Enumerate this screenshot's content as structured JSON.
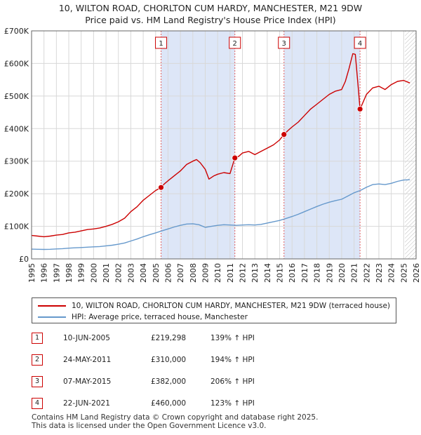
{
  "title_line1": "10, WILTON ROAD, CHORLTON CUM HARDY, MANCHESTER, M21 9DW",
  "title_line2": "Price paid vs. HM Land Registry's House Price Index (HPI)",
  "chart_data": {
    "type": "line",
    "title": "10, WILTON ROAD, CHORLTON CUM HARDY, MANCHESTER, M21 9DW — Price paid vs. HM Land Registry's House Price Index (HPI)",
    "xlabel": "",
    "ylabel": "",
    "xlim": [
      1995,
      2026
    ],
    "ylim": [
      0,
      700000
    ],
    "x_ticks": [
      1995,
      1996,
      1997,
      1998,
      1999,
      2000,
      2001,
      2002,
      2003,
      2004,
      2005,
      2006,
      2007,
      2008,
      2009,
      2010,
      2011,
      2012,
      2013,
      2014,
      2015,
      2016,
      2017,
      2018,
      2019,
      2020,
      2021,
      2022,
      2023,
      2024,
      2025,
      2026
    ],
    "y_ticks": [
      0,
      100000,
      200000,
      300000,
      400000,
      500000,
      600000,
      700000
    ],
    "y_tick_labels": [
      "£0",
      "£100K",
      "£200K",
      "£300K",
      "£400K",
      "£500K",
      "£600K",
      "£700K"
    ],
    "grid": true,
    "colors": {
      "property": "#cc0000",
      "hpi": "#6699cc",
      "shade": "#dde6f7",
      "event_line": "#e06060"
    },
    "series": [
      {
        "name": "10, WILTON ROAD, CHORLTON CUM HARDY, MANCHESTER, M21 9DW (terraced house)",
        "points": [
          [
            1995.0,
            72000
          ],
          [
            1995.5,
            70000
          ],
          [
            1996.0,
            68000
          ],
          [
            1996.5,
            70000
          ],
          [
            1997.0,
            73000
          ],
          [
            1997.5,
            75000
          ],
          [
            1998.0,
            80000
          ],
          [
            1998.5,
            82000
          ],
          [
            1999.0,
            86000
          ],
          [
            1999.5,
            90000
          ],
          [
            2000.0,
            92000
          ],
          [
            2000.5,
            95000
          ],
          [
            2001.0,
            100000
          ],
          [
            2001.5,
            106000
          ],
          [
            2002.0,
            114000
          ],
          [
            2002.5,
            125000
          ],
          [
            2003.0,
            145000
          ],
          [
            2003.5,
            160000
          ],
          [
            2004.0,
            180000
          ],
          [
            2004.5,
            195000
          ],
          [
            2005.0,
            210000
          ],
          [
            2005.44,
            219298
          ],
          [
            2005.7,
            230000
          ],
          [
            2006.0,
            240000
          ],
          [
            2006.5,
            255000
          ],
          [
            2007.0,
            270000
          ],
          [
            2007.5,
            290000
          ],
          [
            2008.0,
            300000
          ],
          [
            2008.3,
            305000
          ],
          [
            2008.6,
            295000
          ],
          [
            2009.0,
            275000
          ],
          [
            2009.3,
            245000
          ],
          [
            2009.7,
            255000
          ],
          [
            2010.0,
            260000
          ],
          [
            2010.5,
            265000
          ],
          [
            2011.0,
            262000
          ],
          [
            2011.39,
            310000
          ],
          [
            2011.7,
            315000
          ],
          [
            2012.0,
            325000
          ],
          [
            2012.5,
            330000
          ],
          [
            2013.0,
            320000
          ],
          [
            2013.5,
            330000
          ],
          [
            2014.0,
            340000
          ],
          [
            2014.5,
            350000
          ],
          [
            2015.0,
            365000
          ],
          [
            2015.35,
            382000
          ],
          [
            2015.7,
            395000
          ],
          [
            2016.0,
            405000
          ],
          [
            2016.5,
            420000
          ],
          [
            2017.0,
            440000
          ],
          [
            2017.5,
            460000
          ],
          [
            2018.0,
            475000
          ],
          [
            2018.5,
            490000
          ],
          [
            2019.0,
            505000
          ],
          [
            2019.5,
            515000
          ],
          [
            2020.0,
            520000
          ],
          [
            2020.3,
            545000
          ],
          [
            2020.6,
            585000
          ],
          [
            2020.9,
            630000
          ],
          [
            2021.1,
            628000
          ],
          [
            2021.35,
            520000
          ],
          [
            2021.48,
            460000
          ],
          [
            2021.6,
            470000
          ],
          [
            2022.0,
            505000
          ],
          [
            2022.5,
            525000
          ],
          [
            2023.0,
            530000
          ],
          [
            2023.5,
            520000
          ],
          [
            2024.0,
            535000
          ],
          [
            2024.5,
            545000
          ],
          [
            2025.0,
            548000
          ],
          [
            2025.5,
            540000
          ]
        ]
      },
      {
        "name": "HPI: Average price, terraced house, Manchester",
        "points": [
          [
            1995.0,
            30000
          ],
          [
            1995.5,
            29500
          ],
          [
            1996.0,
            29000
          ],
          [
            1996.5,
            29500
          ],
          [
            1997.0,
            30500
          ],
          [
            1997.5,
            31500
          ],
          [
            1998.0,
            33000
          ],
          [
            1998.5,
            34000
          ],
          [
            1999.0,
            35000
          ],
          [
            1999.5,
            36000
          ],
          [
            2000.0,
            37000
          ],
          [
            2000.5,
            38000
          ],
          [
            2001.0,
            40000
          ],
          [
            2001.5,
            42000
          ],
          [
            2002.0,
            45000
          ],
          [
            2002.5,
            49000
          ],
          [
            2003.0,
            55000
          ],
          [
            2003.5,
            61000
          ],
          [
            2004.0,
            68000
          ],
          [
            2004.5,
            74000
          ],
          [
            2005.0,
            80000
          ],
          [
            2005.5,
            86000
          ],
          [
            2006.0,
            92000
          ],
          [
            2006.5,
            98000
          ],
          [
            2007.0,
            103000
          ],
          [
            2007.5,
            107000
          ],
          [
            2008.0,
            108000
          ],
          [
            2008.5,
            105000
          ],
          [
            2009.0,
            97000
          ],
          [
            2009.5,
            100000
          ],
          [
            2010.0,
            103000
          ],
          [
            2010.5,
            105000
          ],
          [
            2011.0,
            104000
          ],
          [
            2011.5,
            103000
          ],
          [
            2012.0,
            104000
          ],
          [
            2012.5,
            105000
          ],
          [
            2013.0,
            104000
          ],
          [
            2013.5,
            106000
          ],
          [
            2014.0,
            110000
          ],
          [
            2014.5,
            114000
          ],
          [
            2015.0,
            118000
          ],
          [
            2015.5,
            124000
          ],
          [
            2016.0,
            130000
          ],
          [
            2016.5,
            137000
          ],
          [
            2017.0,
            145000
          ],
          [
            2017.5,
            153000
          ],
          [
            2018.0,
            161000
          ],
          [
            2018.5,
            168000
          ],
          [
            2019.0,
            174000
          ],
          [
            2019.5,
            179000
          ],
          [
            2020.0,
            183000
          ],
          [
            2020.5,
            193000
          ],
          [
            2021.0,
            203000
          ],
          [
            2021.5,
            210000
          ],
          [
            2022.0,
            220000
          ],
          [
            2022.5,
            228000
          ],
          [
            2023.0,
            230000
          ],
          [
            2023.5,
            228000
          ],
          [
            2024.0,
            232000
          ],
          [
            2024.5,
            238000
          ],
          [
            2025.0,
            242000
          ],
          [
            2025.5,
            243000
          ]
        ]
      }
    ],
    "transactions": [
      {
        "label": "1",
        "year": 2005.44,
        "price": 219298
      },
      {
        "label": "2",
        "year": 2011.39,
        "price": 310000
      },
      {
        "label": "3",
        "year": 2015.35,
        "price": 382000
      },
      {
        "label": "4",
        "year": 2021.48,
        "price": 460000
      }
    ],
    "shaded_ranges": [
      [
        2005.44,
        2011.39
      ],
      [
        2015.35,
        2021.48
      ]
    ],
    "forecast_start": 2025.1
  },
  "legend": {
    "property_label": "10, WILTON ROAD, CHORLTON CUM HARDY, MANCHESTER, M21 9DW (terraced house)",
    "hpi_label": "HPI: Average price, terraced house, Manchester"
  },
  "transactions_table": [
    {
      "num": "1",
      "date": "10-JUN-2005",
      "price": "£219,298",
      "hpi": "139% ↑ HPI"
    },
    {
      "num": "2",
      "date": "24-MAY-2011",
      "price": "£310,000",
      "hpi": "194% ↑ HPI"
    },
    {
      "num": "3",
      "date": "07-MAY-2015",
      "price": "£382,000",
      "hpi": "206% ↑ HPI"
    },
    {
      "num": "4",
      "date": "22-JUN-2021",
      "price": "£460,000",
      "hpi": "123% ↑ HPI"
    }
  ],
  "footer_line1": "Contains HM Land Registry data © Crown copyright and database right 2025.",
  "footer_line2": "This data is licensed under the Open Government Licence v3.0."
}
